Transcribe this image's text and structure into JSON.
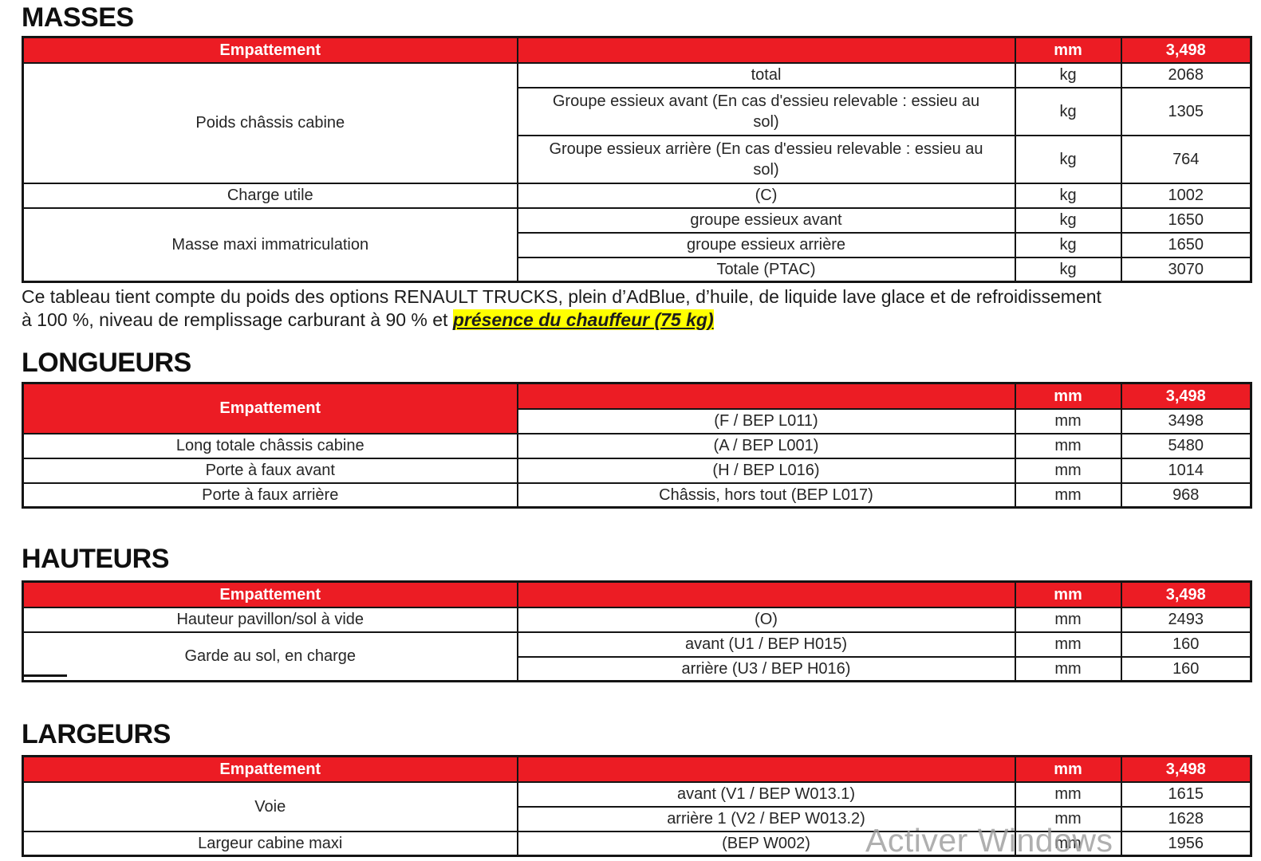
{
  "colors": {
    "header_red": "#EC1C24",
    "row_gray": "#E2E2E2",
    "highlight_yellow": "#FFFF00"
  },
  "watermark": "Activer Windows",
  "note": {
    "line1": "Ce tableau tient compte du poids des options RENAULT TRUCKS, plein d’AdBlue, d’huile, de liquide lave glace et de refroidissement",
    "line2_prefix": "à 100 %, niveau de remplissage carburant à 90 % et ",
    "line2_highlight": "présence du chauffeur (75 kg)"
  },
  "tables": {
    "masses": {
      "title": "MASSES",
      "header": {
        "label": "Empattement",
        "unit": "mm",
        "value": "3,498"
      },
      "groups": {
        "poids": "Poids châssis cabine",
        "charge": "Charge utile",
        "masse": "Masse maxi immatriculation"
      },
      "rows": [
        {
          "desc": "total",
          "unit": "kg",
          "value": "2068"
        },
        {
          "desc": "Groupe essieux avant (En cas d'essieu relevable : essieu au sol)",
          "unit": "kg",
          "value": "1305"
        },
        {
          "desc": "Groupe essieux arrière (En cas d'essieu relevable : essieu au sol)",
          "unit": "kg",
          "value": "764"
        },
        {
          "desc": "(C)",
          "unit": "kg",
          "value": "1002"
        },
        {
          "desc": "groupe essieux avant",
          "unit": "kg",
          "value": "1650"
        },
        {
          "desc": "groupe essieux arrière",
          "unit": "kg",
          "value": "1650"
        },
        {
          "desc": "Totale (PTAC)",
          "unit": "kg",
          "value": "3070"
        }
      ]
    },
    "longueurs": {
      "title": "LONGUEURS",
      "header": {
        "label": "Empattement",
        "unit": "mm",
        "value": "3,498"
      },
      "rows": [
        {
          "label": "",
          "desc": "(F / BEP L011)",
          "unit": "mm",
          "value": "3498"
        },
        {
          "label": "Long totale châssis cabine",
          "desc": "(A / BEP L001)",
          "unit": "mm",
          "value": "5480"
        },
        {
          "label": "Porte à faux avant",
          "desc": "(H / BEP L016)",
          "unit": "mm",
          "value": "1014"
        },
        {
          "label": "Porte à faux arrière",
          "desc": "Châssis, hors tout (BEP L017)",
          "unit": "mm",
          "value": "968"
        }
      ]
    },
    "hauteurs": {
      "title": "HAUTEURS",
      "header": {
        "label": "Empattement",
        "unit": "mm",
        "value": "3,498"
      },
      "groups": {
        "garde": "Garde au sol, en charge"
      },
      "rows": [
        {
          "label": "Hauteur pavillon/sol à vide",
          "desc": "(O)",
          "unit": "mm",
          "value": "2493"
        },
        {
          "desc": "avant (U1 / BEP H015)",
          "unit": "mm",
          "value": "160"
        },
        {
          "desc": "arrière (U3 / BEP H016)",
          "unit": "mm",
          "value": "160"
        }
      ]
    },
    "largeurs": {
      "title": "LARGEURS",
      "header": {
        "label": "Empattement",
        "unit": "mm",
        "value": "3,498"
      },
      "groups": {
        "voie": "Voie"
      },
      "rows": [
        {
          "desc": "avant (V1 / BEP W013.1)",
          "unit": "mm",
          "value": "1615"
        },
        {
          "desc": "arrière 1 (V2 / BEP W013.2)",
          "unit": "mm",
          "value": "1628"
        },
        {
          "label": "Largeur cabine maxi",
          "desc": "(BEP W002)",
          "unit": "mm",
          "value": "1956"
        }
      ]
    }
  }
}
